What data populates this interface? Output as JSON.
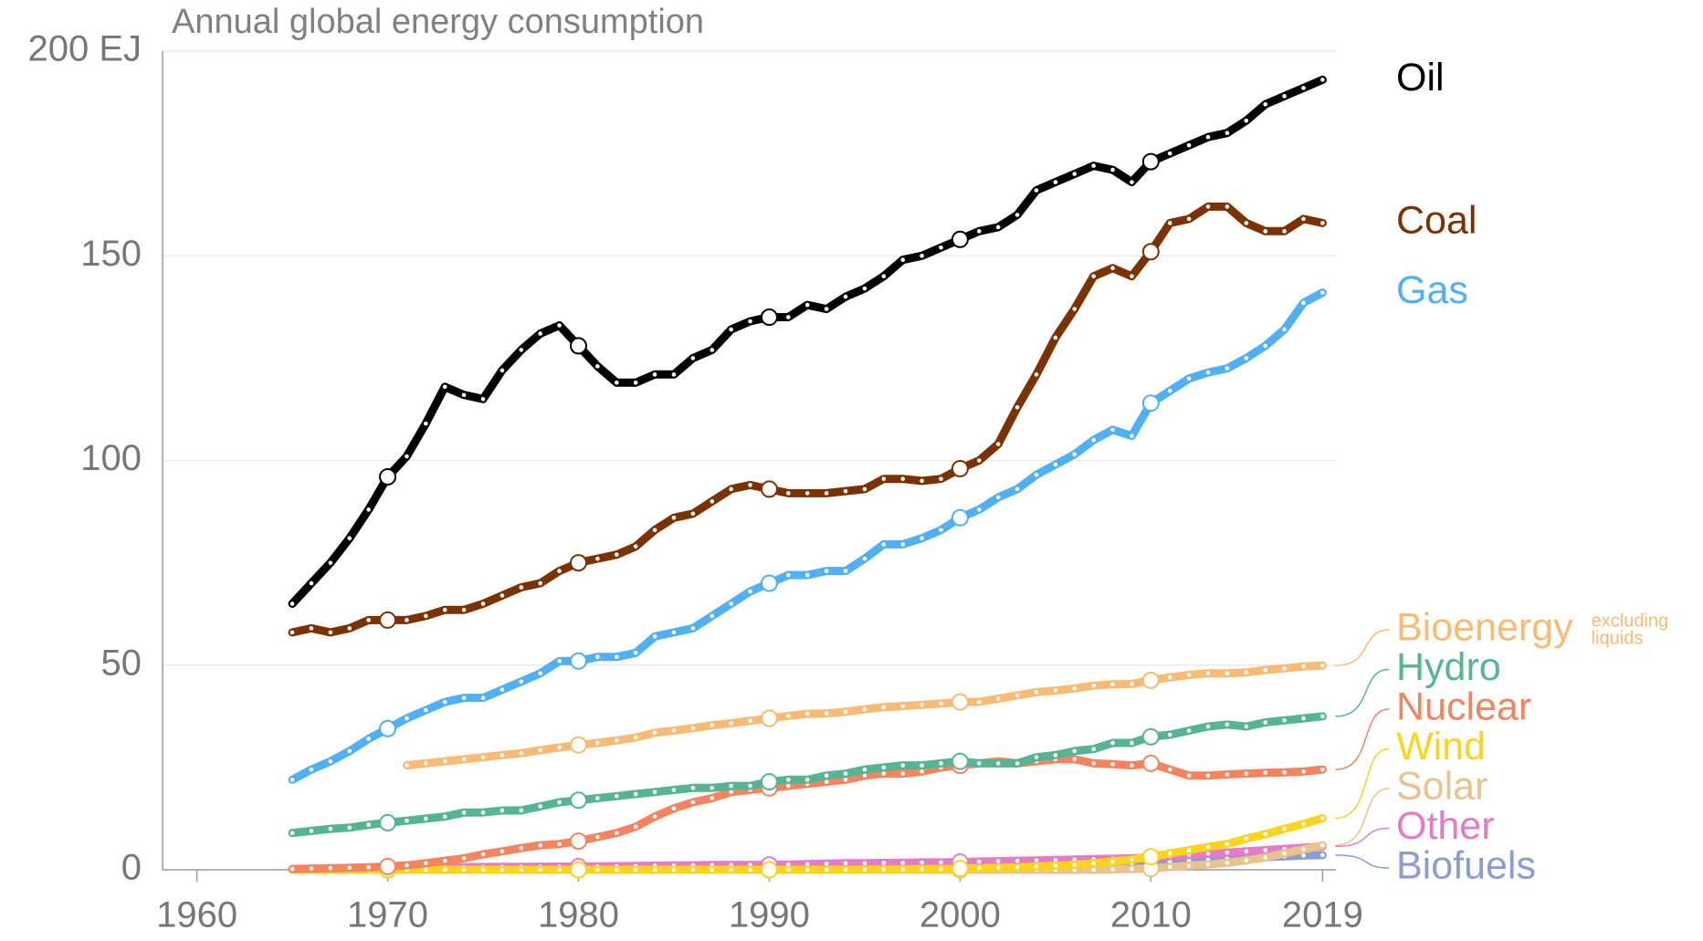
{
  "chart_data": {
    "type": "line",
    "title": "Annual global energy consumption",
    "x": [
      1965,
      1966,
      1967,
      1968,
      1969,
      1970,
      1971,
      1972,
      1973,
      1974,
      1975,
      1976,
      1977,
      1978,
      1979,
      1980,
      1981,
      1982,
      1983,
      1984,
      1985,
      1986,
      1987,
      1988,
      1989,
      1990,
      1991,
      1992,
      1993,
      1994,
      1995,
      1996,
      1997,
      1998,
      1999,
      2000,
      2001,
      2002,
      2003,
      2004,
      2005,
      2006,
      2007,
      2008,
      2009,
      2010,
      2011,
      2012,
      2013,
      2014,
      2015,
      2016,
      2017,
      2018,
      2019
    ],
    "xlim": [
      1958.2,
      2019.7
    ],
    "xticks": [
      1960,
      1970,
      1980,
      1990,
      2000,
      2010,
      2019
    ],
    "ylim": [
      0,
      200
    ],
    "yticks": [
      0,
      50,
      100,
      150,
      {
        "value": 200,
        "label": "200 EJ"
      }
    ],
    "grid": true,
    "series": [
      {
        "name": "Oil",
        "color": "#000000",
        "values": [
          65,
          70,
          75,
          81,
          88,
          96,
          101,
          109,
          118,
          116,
          115,
          122,
          127,
          131,
          133,
          128,
          123,
          119,
          119,
          121,
          121,
          125,
          127,
          132,
          134,
          135,
          135,
          138,
          137,
          140,
          142,
          145,
          149,
          150,
          152,
          154,
          156,
          157,
          160,
          166,
          168,
          170,
          172,
          171,
          168,
          173,
          175,
          177,
          179,
          180,
          183,
          187,
          189,
          191,
          193
        ]
      },
      {
        "name": "Coal",
        "color": "#7b3200",
        "values": [
          58,
          59,
          58,
          59,
          61,
          61,
          61,
          62,
          63.5,
          63.5,
          65,
          67,
          69,
          70,
          73,
          75,
          76,
          77,
          79,
          83,
          86,
          87,
          90,
          93,
          94,
          93,
          92,
          92,
          92,
          92.5,
          93,
          95.5,
          95.5,
          95,
          95.5,
          98,
          100,
          104,
          113,
          121,
          130,
          137,
          145,
          147,
          145,
          151,
          158,
          159,
          162,
          162,
          158,
          156,
          156,
          159,
          158
        ]
      },
      {
        "name": "Gas",
        "color": "#4fb0f5",
        "values": [
          22,
          24.5,
          26.5,
          29,
          32,
          34.5,
          37,
          39,
          41,
          42,
          42,
          44,
          46,
          48,
          51,
          51,
          52,
          52,
          53,
          57,
          58,
          59,
          62,
          65,
          68,
          70,
          72,
          72,
          73,
          73,
          76,
          79.5,
          79.5,
          81,
          83,
          86,
          88,
          91,
          93,
          96.5,
          99,
          101.5,
          105,
          107.5,
          106,
          114,
          117,
          120,
          121.5,
          122.5,
          125,
          128,
          132,
          138.5,
          141
        ]
      },
      {
        "name": "Bioenergy",
        "note": [
          "excluding",
          "liquids"
        ],
        "color": "#f9bb73",
        "values": [
          null,
          null,
          null,
          null,
          null,
          null,
          25.5,
          26,
          26.5,
          27,
          27.5,
          28,
          28.5,
          29.2,
          29.9,
          30.5,
          31,
          31.6,
          32.3,
          33.5,
          34,
          34.6,
          35.3,
          35.8,
          36.4,
          37,
          37.6,
          38.1,
          38.2,
          38.6,
          39.2,
          39.7,
          40,
          40.3,
          40.6,
          41,
          41,
          41.8,
          42.6,
          43.4,
          43.8,
          44.3,
          45,
          45.3,
          45.4,
          46.3,
          47,
          47.6,
          48,
          48,
          48.2,
          48.8,
          49.2,
          49.7,
          49.9
        ]
      },
      {
        "name": "Hydro",
        "color": "#55b592",
        "values": [
          9,
          9.5,
          10,
          10.3,
          11,
          11.5,
          12,
          12.5,
          13,
          14,
          14,
          14.5,
          14.5,
          15.5,
          16.5,
          17,
          17.5,
          18,
          18.5,
          19,
          19.5,
          20,
          20,
          20.5,
          20.5,
          21.5,
          22,
          22,
          23,
          23.5,
          24.5,
          25,
          25.5,
          25.5,
          26,
          26.5,
          26,
          26,
          26,
          27.5,
          28,
          29,
          29.5,
          31,
          31,
          32.5,
          33,
          34,
          35,
          35.5,
          35,
          36,
          36.5,
          37,
          37.5
        ]
      },
      {
        "name": "Nuclear",
        "color": "#f5845e",
        "values": [
          0.2,
          0.3,
          0.4,
          0.5,
          0.6,
          0.8,
          1.1,
          1.6,
          2.2,
          2.8,
          3.8,
          4.5,
          5.3,
          6,
          6.3,
          7,
          8,
          9,
          10.5,
          13,
          15,
          16.5,
          17.5,
          19,
          19.5,
          20,
          20.5,
          21,
          21.5,
          22,
          23,
          23.5,
          23.5,
          24,
          25,
          25.5,
          26,
          26.5,
          26,
          26.5,
          27,
          27,
          26,
          25.8,
          25.5,
          26,
          24.5,
          23,
          23,
          23.3,
          23.5,
          23.7,
          23.8,
          24,
          24.5
        ]
      },
      {
        "name": "Wind",
        "color": "#fdd31c",
        "values": [
          0,
          0,
          0,
          0,
          0,
          0,
          0,
          0,
          0,
          0,
          0,
          0,
          0,
          0,
          0,
          0,
          0,
          0,
          0,
          0,
          0,
          0,
          0,
          0,
          0,
          0,
          0,
          0,
          0,
          0,
          0.07,
          0.1,
          0.1,
          0.2,
          0.2,
          0.3,
          0.4,
          0.5,
          0.6,
          0.8,
          1,
          1.2,
          1.6,
          2,
          2.5,
          3.2,
          4,
          4.8,
          5.6,
          6.3,
          7.6,
          8.7,
          10,
          11.2,
          12.6
        ]
      },
      {
        "name": "Solar",
        "color": "#e8c38d",
        "values": [
          0,
          0,
          0,
          0,
          0,
          0,
          0,
          0,
          0,
          0,
          0,
          0,
          0,
          0,
          0,
          0,
          0,
          0,
          0,
          0,
          0,
          0,
          0,
          0,
          0,
          0,
          0,
          0,
          0,
          0,
          0,
          0,
          0,
          0,
          0,
          0,
          0,
          0,
          0,
          0,
          0,
          0,
          0,
          0.1,
          0.2,
          0.3,
          0.7,
          1,
          1.3,
          1.7,
          2.3,
          3,
          4,
          5,
          6
        ]
      },
      {
        "name": "Other",
        "color": "#e57bc7",
        "values": [
          0.2,
          0.25,
          0.3,
          0.35,
          0.4,
          0.45,
          0.5,
          0.55,
          0.6,
          0.65,
          0.7,
          0.72,
          0.74,
          0.76,
          0.78,
          0.8,
          0.85,
          0.9,
          0.95,
          1,
          1.05,
          1.1,
          1.15,
          1.2,
          1.2,
          1.2,
          1.3,
          1.4,
          1.5,
          1.6,
          1.6,
          1.7,
          1.7,
          1.8,
          1.8,
          1.9,
          2,
          2.1,
          2.2,
          2.3,
          2.4,
          2.5,
          2.6,
          2.7,
          2.8,
          3,
          3.3,
          3.6,
          3.9,
          4.2,
          4.5,
          4.8,
          5.1,
          5.4,
          5.7
        ]
      },
      {
        "name": "Biofuels",
        "color": "#8b9dd0",
        "values": [
          0,
          0,
          0,
          0,
          0,
          0,
          0,
          0,
          0,
          0,
          0,
          0,
          0,
          0,
          0.05,
          0.1,
          0.12,
          0.15,
          0.2,
          0.25,
          0.3,
          0.32,
          0.34,
          0.36,
          0.38,
          0.4,
          0.4,
          0.4,
          0.4,
          0.42,
          0.44,
          0.46,
          0.46,
          0.46,
          0.48,
          0.5,
          0.5,
          0.55,
          0.6,
          0.7,
          0.8,
          1,
          1.2,
          1.4,
          1.6,
          1.8,
          2.1,
          2.3,
          2.5,
          2.7,
          2.9,
          3.1,
          3.3,
          3.5,
          3.6
        ]
      }
    ]
  }
}
